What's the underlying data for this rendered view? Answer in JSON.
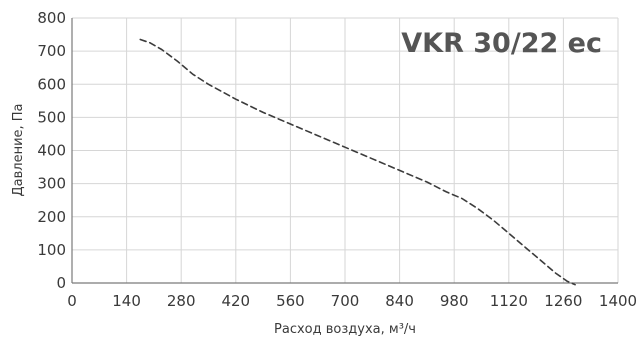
{
  "chart_data": {
    "type": "line",
    "title": "VKR 30/22 ec",
    "xlabel": "Расход воздуха, м³/ч",
    "ylabel": "Давление, Па",
    "xlim": [
      0,
      1400
    ],
    "ylim": [
      0,
      800
    ],
    "x_ticks": [
      0,
      140,
      280,
      420,
      560,
      700,
      840,
      980,
      1120,
      1260,
      1400
    ],
    "y_ticks": [
      0,
      100,
      200,
      300,
      400,
      500,
      600,
      700,
      800
    ],
    "grid": true,
    "legend": "none",
    "colors": {
      "curve": "#3c3c3c",
      "grid": "#d6d6d6",
      "axis": "#7a7a7a",
      "text": "#3a3a3a"
    },
    "series": [
      {
        "line_style": "dashed",
        "x": [
          175,
          200,
          230,
          270,
          310,
          350,
          420,
          490,
          560,
          630,
          700,
          770,
          840,
          910,
          960,
          1000,
          1040,
          1080,
          1120,
          1160,
          1200,
          1240,
          1270,
          1290
        ],
        "y": [
          735,
          725,
          705,
          670,
          630,
          600,
          555,
          515,
          480,
          445,
          410,
          375,
          340,
          305,
          275,
          255,
          225,
          190,
          150,
          110,
          70,
          30,
          5,
          -5
        ]
      }
    ]
  }
}
